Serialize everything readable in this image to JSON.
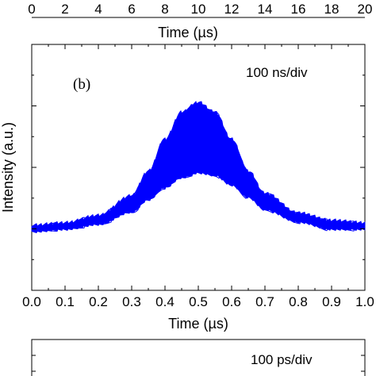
{
  "chart_data": [
    {
      "type": "table",
      "xlabel": "Time (µs)",
      "xlim": [
        0,
        20
      ],
      "xticks": [
        "0",
        "2",
        "4",
        "6",
        "8",
        "10",
        "12",
        "14",
        "16",
        "18",
        "20"
      ]
    },
    {
      "type": "area",
      "panel_label": "(b)",
      "annotation": "100 ns/div",
      "xlabel": "Time (µs)",
      "ylabel": "Intensity (a.u.)",
      "xlim": [
        0,
        1.0
      ],
      "ylim": [
        0,
        1.0
      ],
      "xticks": [
        "0.0",
        "0.1",
        "0.2",
        "0.3",
        "0.4",
        "0.5",
        "0.6",
        "0.7",
        "0.8",
        "0.9",
        "1.0"
      ],
      "y_tick_labels_shown": false,
      "color": "#0000ff",
      "series": [
        {
          "x": [
            0.0,
            0.1,
            0.2,
            0.3,
            0.35,
            0.4,
            0.45,
            0.5,
            0.55,
            0.6,
            0.65,
            0.7,
            0.8,
            0.9,
            1.0
          ],
          "values": [
            0.26,
            0.27,
            0.3,
            0.38,
            0.48,
            0.61,
            0.72,
            0.76,
            0.72,
            0.61,
            0.48,
            0.39,
            0.31,
            0.28,
            0.27
          ]
        },
        {
          "x": [
            0.0,
            0.1,
            0.2,
            0.3,
            0.35,
            0.4,
            0.45,
            0.5,
            0.55,
            0.6,
            0.65,
            0.7,
            0.8,
            0.9,
            1.0
          ],
          "values": [
            0.24,
            0.25,
            0.27,
            0.32,
            0.37,
            0.42,
            0.46,
            0.48,
            0.47,
            0.43,
            0.38,
            0.33,
            0.28,
            0.25,
            0.25
          ]
        }
      ]
    },
    {
      "type": "area",
      "annotation": "100 ps/div"
    }
  ]
}
